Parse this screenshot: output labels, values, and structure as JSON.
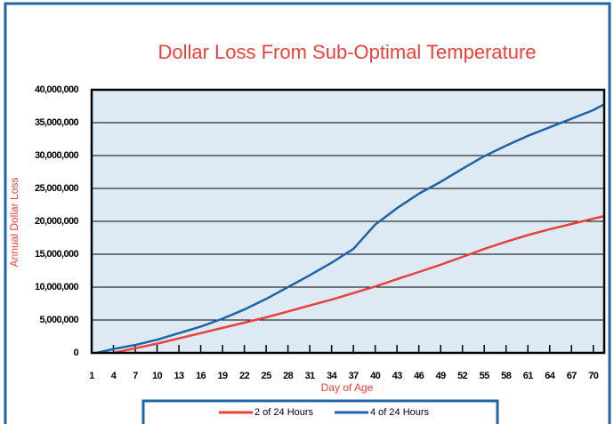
{
  "chart_data": {
    "type": "line",
    "title": "Dollar Loss From Sub-Optimal Temperature",
    "x_label": "Day of Age",
    "y_label": "Annual Dollar Loss",
    "xlim": [
      1,
      71.5
    ],
    "ylim": [
      0,
      40000000
    ],
    "xticks": [
      1,
      4,
      7,
      10,
      13,
      16,
      19,
      22,
      25,
      28,
      31,
      34,
      37,
      40,
      43,
      46,
      49,
      52,
      55,
      58,
      61,
      64,
      67,
      70
    ],
    "yticks": [
      0,
      {
        "value": 5000000,
        "label": "5,000,000"
      },
      {
        "value": 10000000,
        "label": "10,000,000"
      },
      {
        "value": 15000000,
        "label": "15,000,000"
      },
      {
        "value": 20000000,
        "label": "20,000,000"
      },
      {
        "value": 25000000,
        "label": "25,000,000"
      },
      {
        "value": 30000000,
        "label": "30,000,000"
      },
      {
        "value": 35000000,
        "label": "35,000,000"
      },
      {
        "value": 40000000,
        "label": "40,000,000"
      }
    ],
    "grid": true,
    "legend": "bottom",
    "series": [
      {
        "name": "2 of 24 Hours",
        "color": "#e8403a",
        "x": [
          4,
          7,
          10,
          13,
          16,
          19,
          22,
          25,
          28,
          31,
          34,
          37,
          40,
          43,
          46,
          49,
          52,
          55,
          58,
          61,
          64,
          67,
          70,
          71.5
        ],
        "values": [
          0,
          700000,
          1400000,
          2200000,
          3000000,
          3800000,
          4600000,
          5400000,
          6300000,
          7200000,
          8100000,
          9100000,
          10100000,
          11200000,
          12300000,
          13400000,
          14600000,
          15800000,
          16900000,
          17900000,
          18800000,
          19600000,
          20400000,
          20800000
        ]
      },
      {
        "name": "4 of 24 Hours",
        "color": "#1f63a8",
        "x": [
          1.7,
          4,
          7,
          10,
          13,
          16,
          19,
          22,
          25,
          28,
          31,
          34,
          37,
          40,
          43,
          46,
          49,
          52,
          55,
          58,
          61,
          64,
          67,
          70,
          71.5
        ],
        "values": [
          0,
          600000,
          1200000,
          2000000,
          3000000,
          4000000,
          5200000,
          6600000,
          8200000,
          10000000,
          11800000,
          13700000,
          15800000,
          19500000,
          22000000,
          24200000,
          26000000,
          28000000,
          29900000,
          31500000,
          33000000,
          34300000,
          35600000,
          36900000,
          37800000
        ]
      }
    ]
  }
}
